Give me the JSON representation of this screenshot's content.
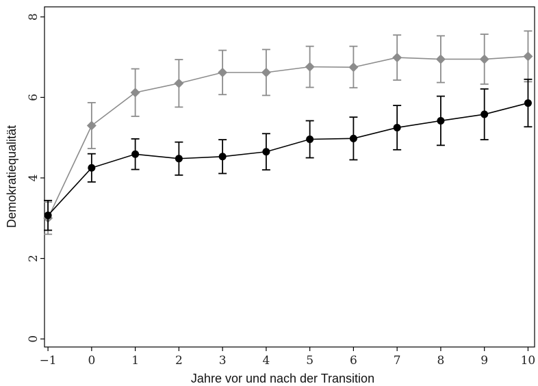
{
  "chart_data": {
    "type": "line",
    "title": "",
    "xlabel": "Jahre vor und nach der Transition",
    "ylabel": "Demokratiequalität",
    "xlim": [
      -1.08,
      10.15
    ],
    "ylim": [
      -0.2,
      8.25
    ],
    "x_ticks": [
      -1,
      0,
      1,
      2,
      3,
      4,
      5,
      6,
      7,
      8,
      9,
      10
    ],
    "x_tick_labels": [
      "−1",
      "0",
      "1",
      "2",
      "3",
      "4",
      "5",
      "6",
      "7",
      "8",
      "9",
      "10"
    ],
    "y_ticks": [
      0,
      2,
      4,
      6,
      8
    ],
    "y_tick_labels": [
      "0",
      "2",
      "4",
      "6",
      "8"
    ],
    "grid": false,
    "legend": "none",
    "x": [
      -1,
      0,
      1,
      2,
      3,
      4,
      5,
      6,
      7,
      8,
      9,
      10
    ],
    "series": [
      {
        "color": "#8c8c8c",
        "marker": "diamond",
        "values": [
          3.0,
          5.3,
          6.12,
          6.35,
          6.62,
          6.62,
          6.76,
          6.75,
          6.99,
          6.95,
          6.95,
          7.02
        ],
        "lower": [
          2.6,
          4.73,
          5.53,
          5.76,
          6.07,
          6.05,
          6.25,
          6.24,
          6.43,
          6.37,
          6.33,
          6.39
        ],
        "upper": [
          3.4,
          5.87,
          6.71,
          6.94,
          7.17,
          7.19,
          7.27,
          7.27,
          7.55,
          7.53,
          7.57,
          7.65
        ]
      },
      {
        "color": "#000000",
        "marker": "circle",
        "values": [
          3.07,
          4.25,
          4.59,
          4.48,
          4.53,
          4.65,
          4.96,
          4.98,
          5.25,
          5.42,
          5.58,
          5.86
        ],
        "lower": [
          2.7,
          3.9,
          4.21,
          4.07,
          4.11,
          4.2,
          4.5,
          4.45,
          4.7,
          4.81,
          4.95,
          5.27
        ],
        "upper": [
          3.44,
          4.6,
          4.97,
          4.89,
          4.95,
          5.1,
          5.42,
          5.51,
          5.8,
          6.03,
          6.21,
          6.45
        ]
      }
    ]
  }
}
